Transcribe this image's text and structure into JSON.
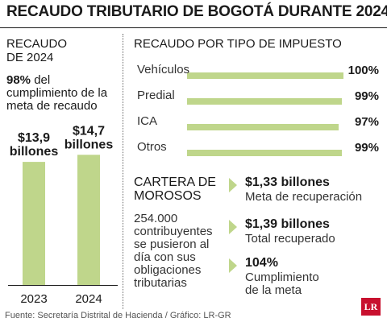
{
  "title": "RECAUDO TRIBUTARIO DE BOGOTÁ DURANTE 2024",
  "left_panel": {
    "heading_line1": "RECAUDO",
    "heading_line2": "DE 2024",
    "pct": "98%",
    "desc_line1_rest": " del",
    "desc_line2": "cumplimiento de la",
    "desc_line3": "meta de recaudo"
  },
  "right_panel": {
    "heading": "RECAUDO POR TIPO DE IMPUESTO"
  },
  "cartera": {
    "heading_line1": "CARTERA DE",
    "heading_line2": "MOROSOS",
    "desc_lines": [
      "254.000",
      "contribuyentes",
      "se pusieron al",
      "día con sus",
      "obligaciones",
      "tributarias"
    ]
  },
  "kpis": [
    {
      "value": "$1,33 billones",
      "caption_lines": [
        "Meta de recuperación"
      ]
    },
    {
      "value": "$1,39 billones",
      "caption_lines": [
        "Total recuperado"
      ]
    },
    {
      "value": "104%",
      "caption_lines": [
        "Cumplimiento",
        "de la meta"
      ]
    }
  ],
  "footer": {
    "source": "Fuente: Secretaría Distrital de Hacienda / Gráfico: LR-GR",
    "logo": "LR"
  },
  "colors": {
    "accent": "#bfd68b",
    "text": "#1a1a1a"
  },
  "chart_data": [
    {
      "type": "bar",
      "categories": [
        "2023",
        "2024"
      ],
      "values": [
        13.9,
        14.7
      ],
      "labels": [
        [
          "$13,9",
          "billones"
        ],
        [
          "$14,7",
          "billones"
        ]
      ],
      "unit": "billones COP"
    },
    {
      "type": "bar",
      "orientation": "horizontal",
      "categories": [
        "Vehículos",
        "Predial",
        "ICA",
        "Otros"
      ],
      "values": [
        100,
        99,
        97,
        99
      ],
      "labels": [
        "100%",
        "99%",
        "97%",
        "99%"
      ],
      "xlim": [
        0,
        100
      ]
    }
  ]
}
